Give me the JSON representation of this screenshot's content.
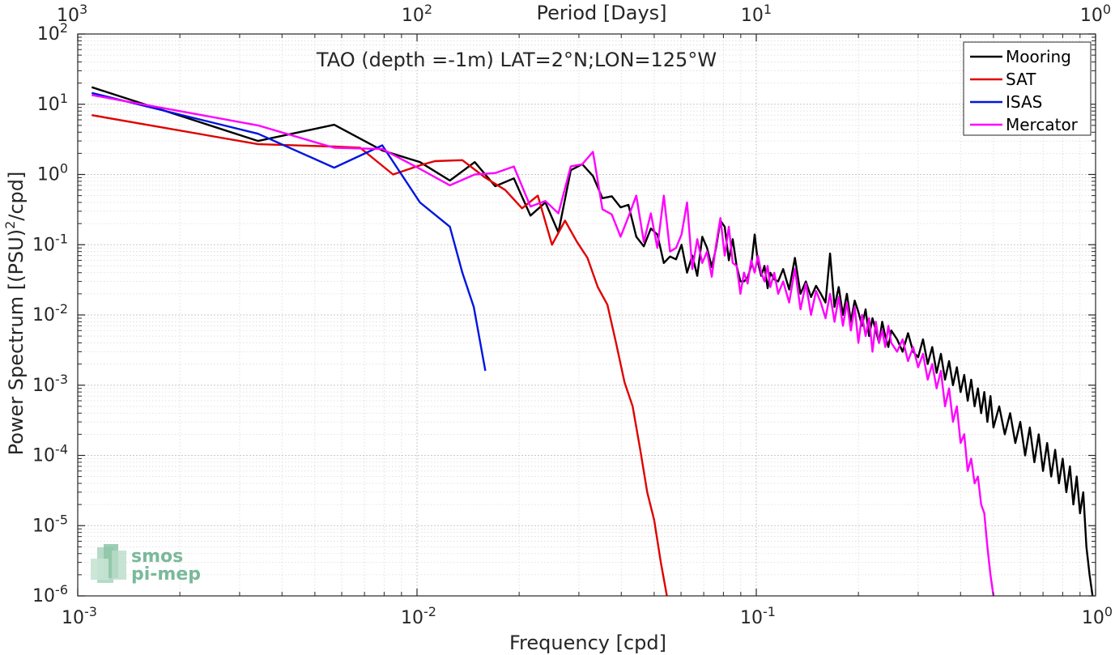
{
  "chart_data": {
    "type": "line",
    "title": "TAO (depth =-1m) LAT=2°N;LON=125°W",
    "xlabel": "Frequency [cpd]",
    "ylabel": "Power Spectrum [(PSU)",
    "ylabel_sup": "2",
    "ylabel_tail": "/cpd]",
    "top_xlabel": "Period [Days]",
    "xscale": "log",
    "yscale": "log",
    "xlim": [
      0.001,
      1
    ],
    "ylim": [
      1e-06,
      100
    ],
    "grid": true,
    "legend_position": "top-right",
    "x_ticks": [
      {
        "value": 0.001,
        "base": "10",
        "exp": "-3"
      },
      {
        "value": 0.01,
        "base": "10",
        "exp": "-2"
      },
      {
        "value": 0.1,
        "base": "10",
        "exp": "-1"
      },
      {
        "value": 1,
        "base": "10",
        "exp": "0"
      }
    ],
    "top_ticks": [
      {
        "value": 0.001,
        "base": "10",
        "exp": "3"
      },
      {
        "value": 0.01,
        "base": "10",
        "exp": "2"
      },
      {
        "value": 0.1,
        "base": "10",
        "exp": "1"
      },
      {
        "value": 1,
        "base": "10",
        "exp": "0"
      }
    ],
    "y_ticks": [
      {
        "value": 100,
        "base": "10",
        "exp": "2"
      },
      {
        "value": 10,
        "base": "10",
        "exp": "1"
      },
      {
        "value": 1,
        "base": "10",
        "exp": "0"
      },
      {
        "value": 0.1,
        "base": "10",
        "exp": "-1"
      },
      {
        "value": 0.01,
        "base": "10",
        "exp": "-2"
      },
      {
        "value": 0.001,
        "base": "10",
        "exp": "-3"
      },
      {
        "value": 0.0001,
        "base": "10",
        "exp": "-4"
      },
      {
        "value": 1e-05,
        "base": "10",
        "exp": "-5"
      },
      {
        "value": 1e-06,
        "base": "10",
        "exp": "-6"
      }
    ],
    "series": [
      {
        "name": "Mooring",
        "color": "#000000",
        "points": [
          [
            0.0011,
            17.5
          ],
          [
            0.0034,
            3.0
          ],
          [
            0.0057,
            5.1
          ],
          [
            0.0079,
            2.2
          ],
          [
            0.0102,
            1.5
          ],
          [
            0.0125,
            0.82
          ],
          [
            0.0148,
            1.5
          ],
          [
            0.017,
            0.68
          ],
          [
            0.0193,
            0.88
          ],
          [
            0.0216,
            0.26
          ],
          [
            0.0239,
            0.4
          ],
          [
            0.0261,
            0.15
          ],
          [
            0.0284,
            1.15
          ],
          [
            0.0307,
            1.4
          ],
          [
            0.033,
            0.95
          ],
          [
            0.0352,
            0.46
          ],
          [
            0.0375,
            0.49
          ],
          [
            0.0398,
            0.34
          ],
          [
            0.042,
            0.37
          ],
          [
            0.0443,
            0.13
          ],
          [
            0.0466,
            0.095
          ],
          [
            0.0489,
            0.17
          ],
          [
            0.0511,
            0.14
          ],
          [
            0.0534,
            0.055
          ],
          [
            0.0557,
            0.068
          ],
          [
            0.058,
            0.062
          ],
          [
            0.0602,
            0.1
          ],
          [
            0.0625,
            0.04
          ],
          [
            0.0648,
            0.07
          ],
          [
            0.067,
            0.036
          ],
          [
            0.0693,
            0.13
          ],
          [
            0.0716,
            0.09
          ],
          [
            0.0739,
            0.048
          ],
          [
            0.0761,
            0.09
          ],
          [
            0.0784,
            0.22
          ],
          [
            0.0807,
            0.18
          ],
          [
            0.083,
            0.06
          ],
          [
            0.0852,
            0.12
          ],
          [
            0.0875,
            0.05
          ],
          [
            0.0898,
            0.03
          ],
          [
            0.092,
            0.03
          ],
          [
            0.0943,
            0.034
          ],
          [
            0.0966,
            0.05
          ],
          [
            0.0989,
            0.14
          ],
          [
            0.1011,
            0.056
          ],
          [
            0.1034,
            0.036
          ],
          [
            0.1057,
            0.05
          ],
          [
            0.108,
            0.024
          ],
          [
            0.11,
            0.04
          ],
          [
            0.113,
            0.032
          ],
          [
            0.116,
            0.03
          ],
          [
            0.12,
            0.045
          ],
          [
            0.125,
            0.023
          ],
          [
            0.13,
            0.065
          ],
          [
            0.135,
            0.02
          ],
          [
            0.14,
            0.03
          ],
          [
            0.145,
            0.018
          ],
          [
            0.15,
            0.026
          ],
          [
            0.155,
            0.02
          ],
          [
            0.16,
            0.015
          ],
          [
            0.165,
            0.075
          ],
          [
            0.17,
            0.013
          ],
          [
            0.175,
            0.025
          ],
          [
            0.18,
            0.01
          ],
          [
            0.185,
            0.02
          ],
          [
            0.19,
            0.008
          ],
          [
            0.195,
            0.016
          ],
          [
            0.2,
            0.011
          ],
          [
            0.205,
            0.007
          ],
          [
            0.21,
            0.012
          ],
          [
            0.215,
            0.005
          ],
          [
            0.22,
            0.009
          ],
          [
            0.225,
            0.006
          ],
          [
            0.23,
            0.004
          ],
          [
            0.235,
            0.008
          ],
          [
            0.24,
            0.005
          ],
          [
            0.245,
            0.0035
          ],
          [
            0.25,
            0.006
          ],
          [
            0.26,
            0.0045
          ],
          [
            0.27,
            0.003
          ],
          [
            0.28,
            0.0055
          ],
          [
            0.29,
            0.003
          ],
          [
            0.3,
            0.0025
          ],
          [
            0.31,
            0.0045
          ],
          [
            0.32,
            0.002
          ],
          [
            0.33,
            0.0035
          ],
          [
            0.34,
            0.0015
          ],
          [
            0.35,
            0.0028
          ],
          [
            0.36,
            0.0012
          ],
          [
            0.37,
            0.0022
          ],
          [
            0.38,
            0.001
          ],
          [
            0.39,
            0.0018
          ],
          [
            0.4,
            0.0008
          ],
          [
            0.41,
            0.0014
          ],
          [
            0.42,
            0.0006
          ],
          [
            0.43,
            0.0012
          ],
          [
            0.44,
            0.0005
          ],
          [
            0.45,
            0.0009
          ],
          [
            0.46,
            0.0004
          ],
          [
            0.47,
            0.0008
          ],
          [
            0.48,
            0.0003
          ],
          [
            0.49,
            0.0007
          ],
          [
            0.5,
            0.00025
          ],
          [
            0.52,
            0.0005
          ],
          [
            0.54,
            0.0002
          ],
          [
            0.56,
            0.0004
          ],
          [
            0.58,
            0.00015
          ],
          [
            0.6,
            0.0003
          ],
          [
            0.62,
            0.0001
          ],
          [
            0.64,
            0.00025
          ],
          [
            0.66,
            8e-05
          ],
          [
            0.68,
            0.0002
          ],
          [
            0.7,
            6e-05
          ],
          [
            0.72,
            0.00015
          ],
          [
            0.74,
            5e-05
          ],
          [
            0.76,
            0.00012
          ],
          [
            0.78,
            4e-05
          ],
          [
            0.8,
            9e-05
          ],
          [
            0.82,
            3e-05
          ],
          [
            0.84,
            7e-05
          ],
          [
            0.86,
            2e-05
          ],
          [
            0.88,
            5e-05
          ],
          [
            0.9,
            1.5e-05
          ],
          [
            0.92,
            3e-05
          ],
          [
            0.94,
            5e-06
          ],
          [
            0.96,
            2e-06
          ],
          [
            0.98,
            1e-06
          ]
        ]
      },
      {
        "name": "SAT",
        "color": "#e00000",
        "points": [
          [
            0.0011,
            7.0
          ],
          [
            0.0034,
            2.7
          ],
          [
            0.0057,
            2.5
          ],
          [
            0.0068,
            2.4
          ],
          [
            0.0085,
            1.0
          ],
          [
            0.0102,
            1.35
          ],
          [
            0.0113,
            1.55
          ],
          [
            0.0136,
            1.6
          ],
          [
            0.0159,
            0.9
          ],
          [
            0.0182,
            0.6
          ],
          [
            0.0204,
            0.33
          ],
          [
            0.0227,
            0.5
          ],
          [
            0.025,
            0.1
          ],
          [
            0.0273,
            0.22
          ],
          [
            0.0296,
            0.11
          ],
          [
            0.0318,
            0.065
          ],
          [
            0.0341,
            0.025
          ],
          [
            0.0364,
            0.014
          ],
          [
            0.0386,
            0.004
          ],
          [
            0.0409,
            0.0011
          ],
          [
            0.0432,
            0.0005
          ],
          [
            0.0455,
            0.00012
          ],
          [
            0.0477,
            3e-05
          ],
          [
            0.05,
            1.2e-05
          ],
          [
            0.0523,
            3e-06
          ],
          [
            0.0545,
            1e-06
          ]
        ]
      },
      {
        "name": "ISAS",
        "color": "#0015e0",
        "points": [
          [
            0.0011,
            14.5
          ],
          [
            0.0034,
            3.8
          ],
          [
            0.0057,
            1.25
          ],
          [
            0.0079,
            2.6
          ],
          [
            0.0102,
            0.4
          ],
          [
            0.0125,
            0.18
          ],
          [
            0.0136,
            0.04
          ],
          [
            0.0147,
            0.013
          ],
          [
            0.0159,
            0.0016
          ]
        ]
      },
      {
        "name": "Mercator",
        "color": "#ff00ff",
        "points": [
          [
            0.0011,
            13.5
          ],
          [
            0.0034,
            5.0
          ],
          [
            0.0057,
            2.4
          ],
          [
            0.0079,
            2.3
          ],
          [
            0.0102,
            1.2
          ],
          [
            0.0125,
            0.7
          ],
          [
            0.0148,
            1.0
          ],
          [
            0.017,
            1.05
          ],
          [
            0.0193,
            1.3
          ],
          [
            0.0216,
            0.35
          ],
          [
            0.0239,
            0.42
          ],
          [
            0.0261,
            0.28
          ],
          [
            0.0284,
            1.3
          ],
          [
            0.0307,
            1.4
          ],
          [
            0.033,
            2.1
          ],
          [
            0.0352,
            0.32
          ],
          [
            0.0375,
            0.27
          ],
          [
            0.0398,
            0.13
          ],
          [
            0.042,
            0.25
          ],
          [
            0.0443,
            0.5
          ],
          [
            0.0466,
            0.11
          ],
          [
            0.0489,
            0.28
          ],
          [
            0.0511,
            0.09
          ],
          [
            0.0534,
            0.5
          ],
          [
            0.0557,
            0.08
          ],
          [
            0.058,
            0.09
          ],
          [
            0.0602,
            0.14
          ],
          [
            0.0625,
            0.4
          ],
          [
            0.0648,
            0.045
          ],
          [
            0.067,
            0.12
          ],
          [
            0.0693,
            0.055
          ],
          [
            0.0716,
            0.08
          ],
          [
            0.0739,
            0.035
          ],
          [
            0.0761,
            0.1
          ],
          [
            0.0784,
            0.24
          ],
          [
            0.0807,
            0.07
          ],
          [
            0.083,
            0.18
          ],
          [
            0.0852,
            0.055
          ],
          [
            0.0875,
            0.05
          ],
          [
            0.0898,
            0.02
          ],
          [
            0.092,
            0.04
          ],
          [
            0.0943,
            0.028
          ],
          [
            0.0966,
            0.06
          ],
          [
            0.0989,
            0.04
          ],
          [
            0.1011,
            0.07
          ],
          [
            0.1034,
            0.04
          ],
          [
            0.1057,
            0.03
          ],
          [
            0.108,
            0.05
          ],
          [
            0.11,
            0.025
          ],
          [
            0.113,
            0.04
          ],
          [
            0.116,
            0.02
          ],
          [
            0.12,
            0.03
          ],
          [
            0.125,
            0.015
          ],
          [
            0.13,
            0.045
          ],
          [
            0.135,
            0.012
          ],
          [
            0.14,
            0.028
          ],
          [
            0.145,
            0.01
          ],
          [
            0.15,
            0.022
          ],
          [
            0.155,
            0.015
          ],
          [
            0.16,
            0.009
          ],
          [
            0.165,
            0.02
          ],
          [
            0.17,
            0.008
          ],
          [
            0.175,
            0.018
          ],
          [
            0.18,
            0.007
          ],
          [
            0.185,
            0.015
          ],
          [
            0.19,
            0.006
          ],
          [
            0.195,
            0.013
          ],
          [
            0.2,
            0.004
          ],
          [
            0.205,
            0.01
          ],
          [
            0.21,
            0.005
          ],
          [
            0.215,
            0.009
          ],
          [
            0.22,
            0.003
          ],
          [
            0.225,
            0.008
          ],
          [
            0.23,
            0.004
          ],
          [
            0.235,
            0.006
          ],
          [
            0.24,
            0.0035
          ],
          [
            0.245,
            0.007
          ],
          [
            0.25,
            0.004
          ],
          [
            0.26,
            0.003
          ],
          [
            0.27,
            0.0045
          ],
          [
            0.28,
            0.0022
          ],
          [
            0.29,
            0.0035
          ],
          [
            0.3,
            0.0018
          ],
          [
            0.31,
            0.0028
          ],
          [
            0.32,
            0.0012
          ],
          [
            0.33,
            0.002
          ],
          [
            0.34,
            0.0009
          ],
          [
            0.35,
            0.0016
          ],
          [
            0.36,
            0.0005
          ],
          [
            0.37,
            0.0009
          ],
          [
            0.38,
            0.0003
          ],
          [
            0.39,
            0.0005
          ],
          [
            0.4,
            0.00015
          ],
          [
            0.41,
            0.0002
          ],
          [
            0.42,
            6e-05
          ],
          [
            0.43,
            9e-05
          ],
          [
            0.44,
            4e-05
          ],
          [
            0.45,
            5e-05
          ],
          [
            0.46,
            2e-05
          ],
          [
            0.47,
            1.5e-05
          ],
          [
            0.48,
            5e-06
          ],
          [
            0.49,
            2e-06
          ],
          [
            0.5,
            1e-06
          ]
        ]
      }
    ]
  },
  "logo": {
    "line1": "smos",
    "line2": "pi-mep"
  }
}
